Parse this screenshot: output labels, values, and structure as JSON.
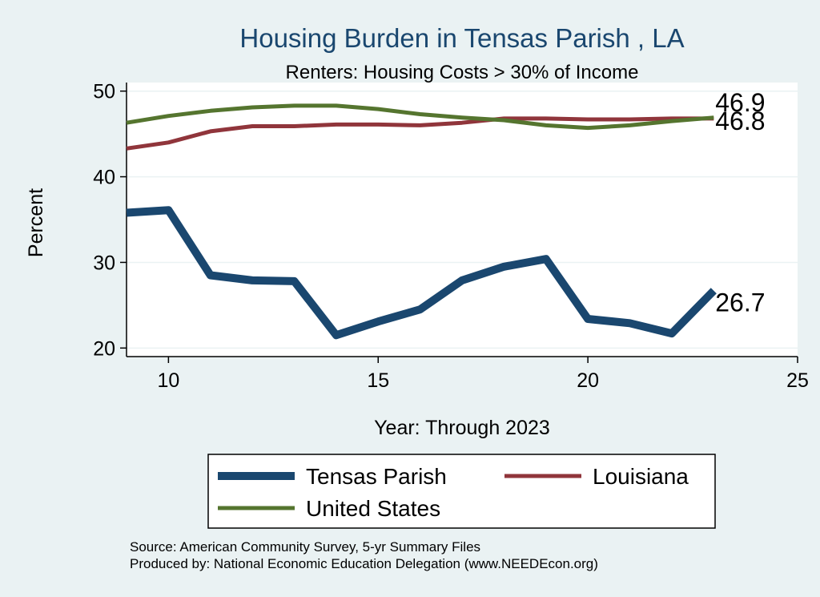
{
  "chart_data": {
    "type": "line",
    "title": "Housing Burden in Tensas Parish , LA",
    "subtitle": "Renters: Housing Costs > 30% of Income",
    "xlabel": "Year: Through 2023",
    "ylabel": "Percent",
    "xlim": [
      9,
      25
    ],
    "ylim": [
      19,
      51
    ],
    "xticks": [
      10,
      15,
      20,
      25
    ],
    "yticks": [
      20,
      30,
      40,
      50
    ],
    "x": [
      9,
      10,
      11,
      12,
      13,
      14,
      15,
      16,
      17,
      18,
      19,
      20,
      21,
      22,
      23
    ],
    "series": [
      {
        "name": "Tensas Parish",
        "color": "#1a476f",
        "values": [
          35.8,
          36.1,
          28.5,
          27.9,
          27.8,
          21.5,
          23.1,
          24.5,
          27.9,
          29.5,
          30.4,
          23.4,
          22.9,
          21.7,
          26.7
        ],
        "end_label": "26.7"
      },
      {
        "name": "Louisiana",
        "color": "#90353b",
        "values": [
          43.3,
          44.0,
          45.3,
          45.9,
          45.9,
          46.1,
          46.1,
          46.0,
          46.3,
          46.8,
          46.8,
          46.7,
          46.7,
          46.8,
          46.8
        ],
        "end_label": "46.8"
      },
      {
        "name": "United States",
        "color": "#55752f",
        "values": [
          46.3,
          47.1,
          47.7,
          48.1,
          48.3,
          48.3,
          47.9,
          47.3,
          46.9,
          46.6,
          46.0,
          45.7,
          46.0,
          46.5,
          46.9
        ],
        "end_label": "46.9"
      }
    ]
  },
  "source": {
    "line1": "Source: American Community Survey, 5-yr Summary Files",
    "line2": "Produced by: National Economic Education Delegation (www.NEEDEcon.org)"
  }
}
